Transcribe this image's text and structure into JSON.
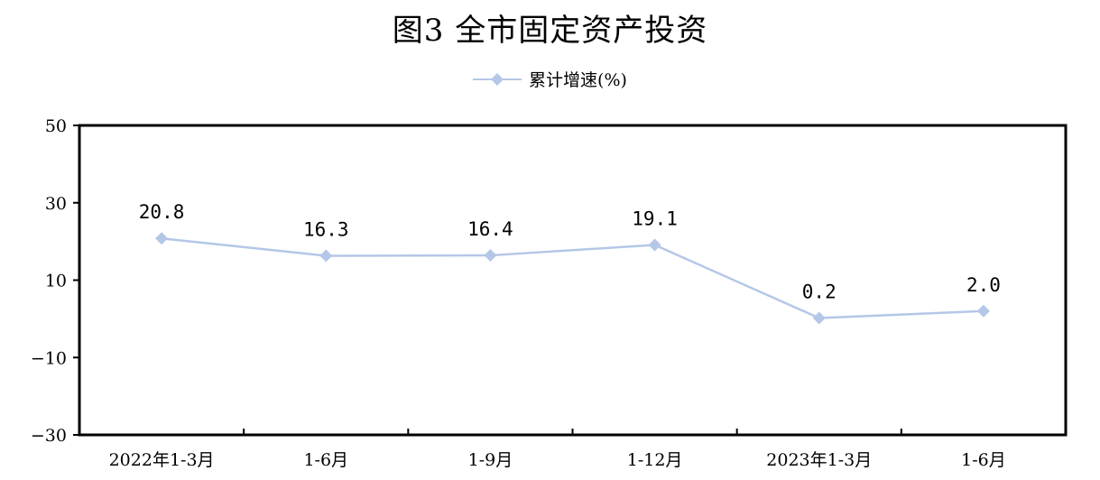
{
  "chart_data": {
    "type": "line",
    "title": "图3  全市固定资产投资",
    "categories": [
      "2022年1-3月",
      "1-6月",
      "1-9月",
      "1-12月",
      "2023年1-3月",
      "1-6月"
    ],
    "series": [
      {
        "name": "累计增速(%)",
        "values": [
          20.8,
          16.3,
          16.4,
          19.1,
          0.2,
          2.0
        ],
        "color": "#b4c7e7"
      }
    ],
    "data_labels": [
      "20.8",
      "16.3",
      "16.4",
      "19.1",
      "0.2",
      "2.0"
    ],
    "y_ticks": [
      50,
      30,
      10,
      -10,
      -30
    ],
    "y_tick_labels": [
      "50",
      "30",
      "10",
      "−10",
      "−30"
    ],
    "ylim": [
      -30,
      50
    ],
    "grid": false,
    "legend_position": "top-center",
    "xlabel": "",
    "ylabel": ""
  }
}
